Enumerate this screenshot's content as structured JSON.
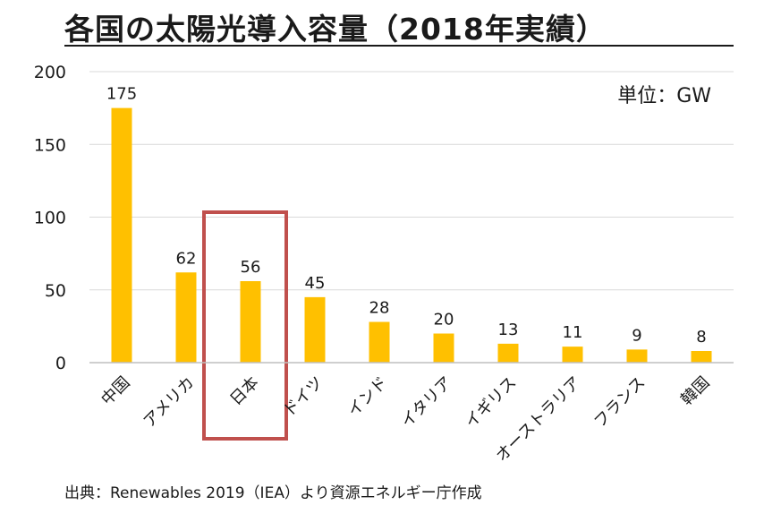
{
  "title": "各国の太陽光導入容量（2018年実績）",
  "source": "出典：Renewables 2019（IEA）より資源エネルギー庁作成",
  "colors": {
    "bar": "#FFC000",
    "highlight": "#C0504D",
    "grid": "#d9d9d9",
    "text": "#1a1a1a"
  },
  "chart_data": {
    "type": "bar",
    "title": "各国の太陽光導入容量（2018年実績）",
    "unit_label": "単位：GW",
    "categories": [
      "中国",
      "アメリカ",
      "日本",
      "ドイツ",
      "インド",
      "イタリア",
      "イギリス",
      "オーストラリア",
      "フランス",
      "韓国"
    ],
    "values": [
      175,
      62,
      56,
      45,
      28,
      20,
      13,
      11,
      9,
      8
    ],
    "yticks": [
      0,
      50,
      100,
      150,
      200
    ],
    "ylim": [
      0,
      200
    ],
    "grid": true,
    "highlight_category": "日本",
    "xlabel": "",
    "ylabel": ""
  }
}
